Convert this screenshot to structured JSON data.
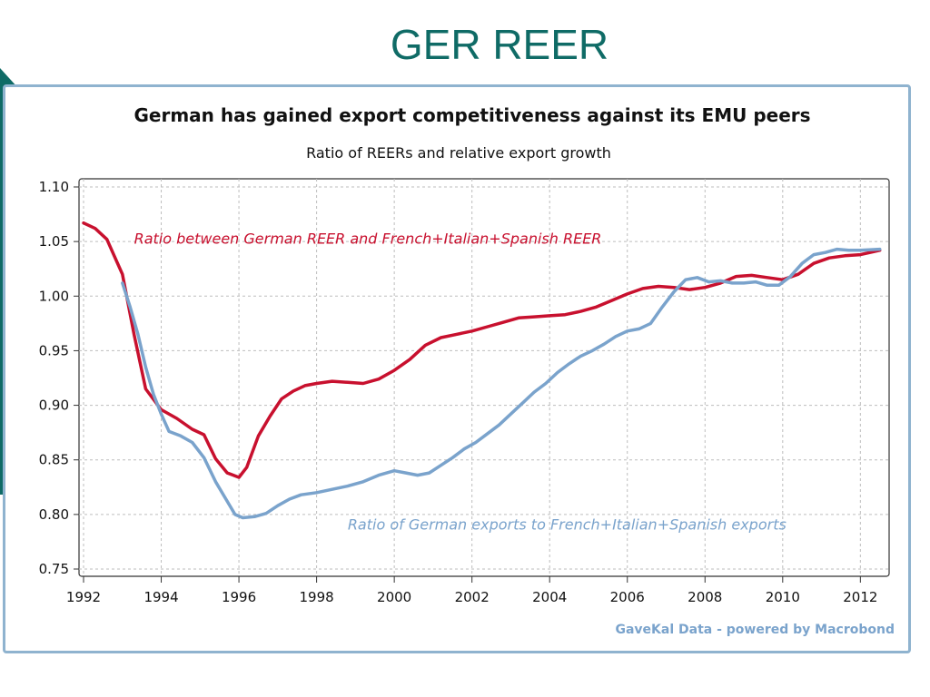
{
  "slide": {
    "title": "GER REER"
  },
  "chart_data": {
    "type": "line",
    "title": "German has gained export competitiveness against its EMU peers",
    "subtitle": "Ratio of REERs and relative export growth",
    "xlabel": "",
    "ylabel": "",
    "xlim": [
      1992,
      2012.6
    ],
    "ylim": [
      0.75,
      1.1
    ],
    "x_ticks": [
      "1992",
      "1994",
      "1996",
      "1998",
      "2000",
      "2002",
      "2004",
      "2006",
      "2008",
      "2010",
      "2012"
    ],
    "y_ticks": [
      "0.75",
      "0.80",
      "0.85",
      "0.90",
      "0.95",
      "1.00",
      "1.05",
      "1.10"
    ],
    "grid": true,
    "series": [
      {
        "name": "Ratio between German REER and French+Italian+Spanish REER",
        "color": "#c8102e",
        "x": [
          1992.0,
          1992.3,
          1992.6,
          1993.0,
          1993.3,
          1993.6,
          1994.0,
          1994.4,
          1994.8,
          1995.1,
          1995.4,
          1995.7,
          1996.0,
          1996.2,
          1996.5,
          1996.8,
          1997.1,
          1997.4,
          1997.7,
          1998.0,
          1998.4,
          1998.8,
          1999.2,
          1999.6,
          2000.0,
          2000.4,
          2000.8,
          2001.2,
          2001.6,
          2002.0,
          2002.4,
          2002.8,
          2003.2,
          2003.6,
          2004.0,
          2004.4,
          2004.8,
          2005.2,
          2005.6,
          2006.0,
          2006.4,
          2006.8,
          2007.2,
          2007.6,
          2008.0,
          2008.4,
          2008.8,
          2009.2,
          2009.6,
          2010.0,
          2010.4,
          2010.8,
          2011.2,
          2011.6,
          2012.0,
          2012.5
        ],
        "y": [
          1.067,
          1.062,
          1.052,
          1.02,
          0.965,
          0.915,
          0.896,
          0.888,
          0.878,
          0.873,
          0.851,
          0.838,
          0.834,
          0.843,
          0.872,
          0.89,
          0.906,
          0.913,
          0.918,
          0.92,
          0.922,
          0.921,
          0.92,
          0.924,
          0.932,
          0.942,
          0.955,
          0.962,
          0.965,
          0.968,
          0.972,
          0.976,
          0.98,
          0.981,
          0.982,
          0.983,
          0.986,
          0.99,
          0.996,
          1.002,
          1.007,
          1.009,
          1.008,
          1.006,
          1.008,
          1.012,
          1.018,
          1.019,
          1.017,
          1.015,
          1.02,
          1.03,
          1.035,
          1.037,
          1.038,
          1.042
        ]
      },
      {
        "name": "Ratio of German exports to French+Italian+Spanish exports",
        "color": "#7aa3cc",
        "x": [
          1993.0,
          1993.2,
          1993.4,
          1993.6,
          1993.8,
          1994.0,
          1994.2,
          1994.5,
          1994.8,
          1995.1,
          1995.4,
          1995.7,
          1995.9,
          1996.1,
          1996.4,
          1996.7,
          1997.0,
          1997.3,
          1997.6,
          1998.0,
          1998.4,
          1998.8,
          1999.2,
          1999.6,
          2000.0,
          2000.3,
          2000.6,
          2000.9,
          2001.2,
          2001.5,
          2001.8,
          2002.1,
          2002.4,
          2002.7,
          2003.0,
          2003.3,
          2003.6,
          2003.9,
          2004.2,
          2004.5,
          2004.8,
          2005.1,
          2005.4,
          2005.7,
          2006.0,
          2006.3,
          2006.6,
          2006.9,
          2007.2,
          2007.5,
          2007.8,
          2008.1,
          2008.4,
          2008.7,
          2009.0,
          2009.3,
          2009.6,
          2009.9,
          2010.2,
          2010.5,
          2010.8,
          2011.1,
          2011.4,
          2011.7,
          2012.0,
          2012.5
        ],
        "y": [
          1.012,
          0.99,
          0.965,
          0.935,
          0.91,
          0.892,
          0.876,
          0.872,
          0.866,
          0.852,
          0.83,
          0.812,
          0.8,
          0.797,
          0.798,
          0.801,
          0.808,
          0.814,
          0.818,
          0.82,
          0.823,
          0.826,
          0.83,
          0.836,
          0.84,
          0.838,
          0.836,
          0.838,
          0.845,
          0.852,
          0.86,
          0.866,
          0.874,
          0.882,
          0.892,
          0.902,
          0.912,
          0.92,
          0.93,
          0.938,
          0.945,
          0.95,
          0.956,
          0.963,
          0.968,
          0.97,
          0.975,
          0.99,
          1.004,
          1.015,
          1.017,
          1.013,
          1.014,
          1.012,
          1.012,
          1.013,
          1.01,
          1.01,
          1.018,
          1.03,
          1.038,
          1.04,
          1.043,
          1.042,
          1.042,
          1.043
        ]
      }
    ],
    "annotations": [
      {
        "text": "Ratio between German REER and French+Italian+Spanish REER",
        "series": 0,
        "x": 1993.3,
        "y": 1.048
      },
      {
        "text": "Ratio of German exports to French+Italian+Spanish exports",
        "series": 1,
        "x": 1998.8,
        "y": 0.786
      }
    ],
    "source": "GaveKal Data - powered by Macrobond"
  }
}
